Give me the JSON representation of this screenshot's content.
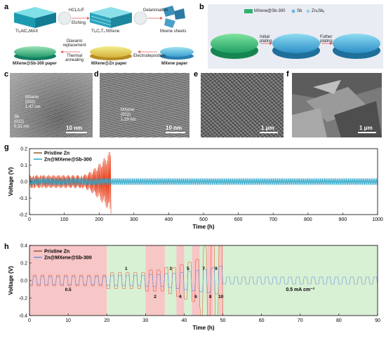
{
  "panels": {
    "a": "a",
    "b": "b",
    "c": "c",
    "d": "d",
    "e": "e",
    "f": "f",
    "g": "g",
    "h": "h"
  },
  "schematic_a": {
    "max_label": "Ti₃AlC₂MAX",
    "mxene_label": "Ti₃C₂Tₓ MXene",
    "sheets_label": "Mxene sheets",
    "step1_top": "HCL/LiF",
    "step1_bottom": "Etching",
    "step2": "Delamination",
    "step3_top": "Glavanic replacement",
    "step3_bottom": "Thermal annealing",
    "step4": "Electrodeposition",
    "sb_paper": "MXene@Sb-300 paper",
    "zn_paper": "MXene@Zn paper",
    "mx_paper": "MXene paper"
  },
  "schematic_b": {
    "legend_mxene": "MXene@Sb-300",
    "legend_sb": "Sb",
    "legend_znsb": "ZnₓSbᵧ",
    "step1": "Initial plating",
    "step2": "Futher plating"
  },
  "micrographs": {
    "c_mxene_label": "MXene",
    "c_mxene_plane": "(002)",
    "c_mxene_spacing": "1.47 nm",
    "c_sb_label": "Sb",
    "c_sb_plane": "(012)",
    "c_sb_spacing": "0.31 nm",
    "c_scale": "10 nm",
    "d_mxene_label": "MXene",
    "d_mxene_plane": "(002)",
    "d_mxene_spacing": "1.29 nm",
    "d_scale": "10 nm",
    "e_scale": "1 μm",
    "f_scale": "1 μm"
  },
  "colors": {
    "pristine": "#8B5A2B",
    "pristine_spike": "#E8401C",
    "composite": "#2BA6C8",
    "composite_h": "#6A8FD8",
    "zone_red": "#F7C6C6",
    "zone_green": "#D8F0D4"
  },
  "chart_data": [
    {
      "type": "line",
      "panel": "g",
      "xlabel": "Time (h)",
      "ylabel": "Voltage (V)",
      "xlim": [
        0,
        1000
      ],
      "ylim": [
        -0.2,
        0.2
      ],
      "xticks": [
        0,
        100,
        200,
        300,
        400,
        500,
        600,
        700,
        800,
        900,
        1000
      ],
      "yticks": [
        -0.2,
        -0.1,
        0.0,
        0.1,
        0.2
      ],
      "series": [
        {
          "name": "Pristine Zn",
          "x_end": 235,
          "amplitude_stable": 0.04,
          "amplitude_max": 0.2
        },
        {
          "name": "Zn@MXene@Sb-300",
          "x_end": 1000,
          "amplitude_stable": 0.02
        }
      ]
    },
    {
      "type": "line",
      "panel": "h",
      "xlabel": "Time (h)",
      "ylabel": "Voltage (V)",
      "xlim": [
        0,
        90
      ],
      "ylim": [
        -0.4,
        0.4
      ],
      "xticks": [
        0,
        10,
        20,
        30,
        40,
        50,
        60,
        70,
        80,
        90
      ],
      "yticks": [
        -0.4,
        -0.2,
        0.0,
        0.2,
        0.4
      ],
      "series": [
        {
          "name": "Pristine Zn",
          "x_end": 50
        },
        {
          "name": "Zn@MXene@Sb-300",
          "x_end": 90
        }
      ],
      "rate_segments": [
        {
          "x0": 0,
          "x1": 20,
          "label": "0.5",
          "zone": "red"
        },
        {
          "x0": 20,
          "x1": 30,
          "label": "1",
          "zone": "green"
        },
        {
          "x0": 30,
          "x1": 35,
          "label": "2",
          "zone": "red"
        },
        {
          "x0": 35,
          "x1": 38,
          "label": "3",
          "zone": "green"
        },
        {
          "x0": 38,
          "x1": 40,
          "label": "4",
          "zone": "red"
        },
        {
          "x0": 40,
          "x1": 42,
          "label": "5",
          "zone": "green"
        },
        {
          "x0": 42,
          "x1": 44,
          "label": "6",
          "zone": "red"
        },
        {
          "x0": 44,
          "x1": 46,
          "label": "7",
          "zone": "green"
        },
        {
          "x0": 46,
          "x1": 47.5,
          "label": "8",
          "zone": "red"
        },
        {
          "x0": 47.5,
          "x1": 49,
          "label": "9",
          "zone": "green"
        },
        {
          "x0": 49,
          "x1": 50,
          "label": "10",
          "zone": "red"
        },
        {
          "x0": 50,
          "x1": 90,
          "label": "0.5 mA cm⁻²",
          "zone": "green"
        }
      ]
    }
  ]
}
